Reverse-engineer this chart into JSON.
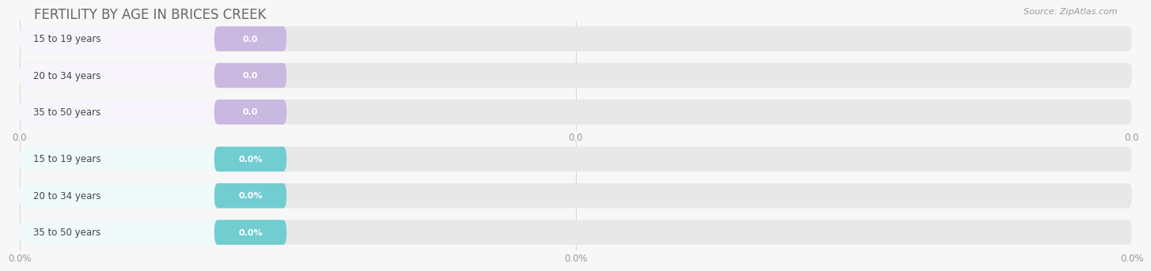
{
  "title": "FERTILITY BY AGE IN BRICES CREEK",
  "source_text": "Source: ZipAtlas.com",
  "sections": [
    {
      "categories": [
        "15 to 19 years",
        "20 to 34 years",
        "35 to 50 years"
      ],
      "values": [
        0.0,
        0.0,
        0.0
      ],
      "bar_color": "#c9b8df",
      "label_bg_color": "#f7f5fb",
      "value_label_suffix": "",
      "x_tick_labels": [
        "0.0",
        "0.0",
        "0.0"
      ]
    },
    {
      "categories": [
        "15 to 19 years",
        "20 to 34 years",
        "35 to 50 years"
      ],
      "values": [
        0.0,
        0.0,
        0.0
      ],
      "bar_color": "#72cdd1",
      "label_bg_color": "#f0fafb",
      "value_label_suffix": "%",
      "x_tick_labels": [
        "0.0%",
        "0.0%",
        "0.0%"
      ]
    }
  ],
  "bg_color": "#f7f7f7",
  "bar_bg_color": "#e8e8e8",
  "title_color": "#666666",
  "source_color": "#999999",
  "tick_color": "#999999",
  "label_text_color": "#444444",
  "value_text_color": "#ffffff",
  "title_fontsize": 12,
  "label_fontsize": 8.5,
  "value_fontsize": 8,
  "tick_fontsize": 8.5
}
